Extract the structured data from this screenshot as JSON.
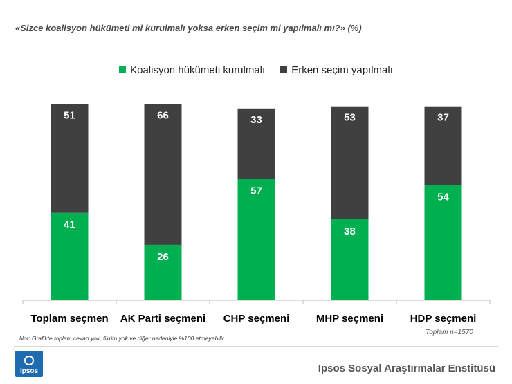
{
  "header": {
    "question": "«Sizce koalisyon hükümeti mi kurulmalı yoksa erken seçim mi yapılmalı mı?» (%)"
  },
  "chart_data": {
    "type": "bar",
    "stacked": true,
    "categories": [
      "Toplam seçmen",
      "AK Parti seçmeni",
      "CHP seçmeni",
      "MHP seçmeni",
      "HDP seçmeni"
    ],
    "series": [
      {
        "name": "Koalisyon hükümeti kurulmalı",
        "values": [
          41,
          26,
          57,
          38,
          54
        ],
        "color": "#00b050"
      },
      {
        "name": "Erken seçim yapılmalı",
        "values": [
          51,
          66,
          33,
          53,
          37
        ],
        "color": "#404040"
      }
    ],
    "ylim": [
      0,
      100
    ],
    "grid": false,
    "legend_position": "top-center"
  },
  "notes": {
    "footnote": "Not: Grafikte toplam cevap yok, fikrim yok ve diğer nedeniyle %100 etmeyebilir",
    "sample": "Toplam n=1570"
  },
  "footer": {
    "logo_text": "Ipsos",
    "institute": "Ipsos Sosyal Araştırmalar Enstitüsü",
    "logo_color": "#1f6bb0"
  }
}
